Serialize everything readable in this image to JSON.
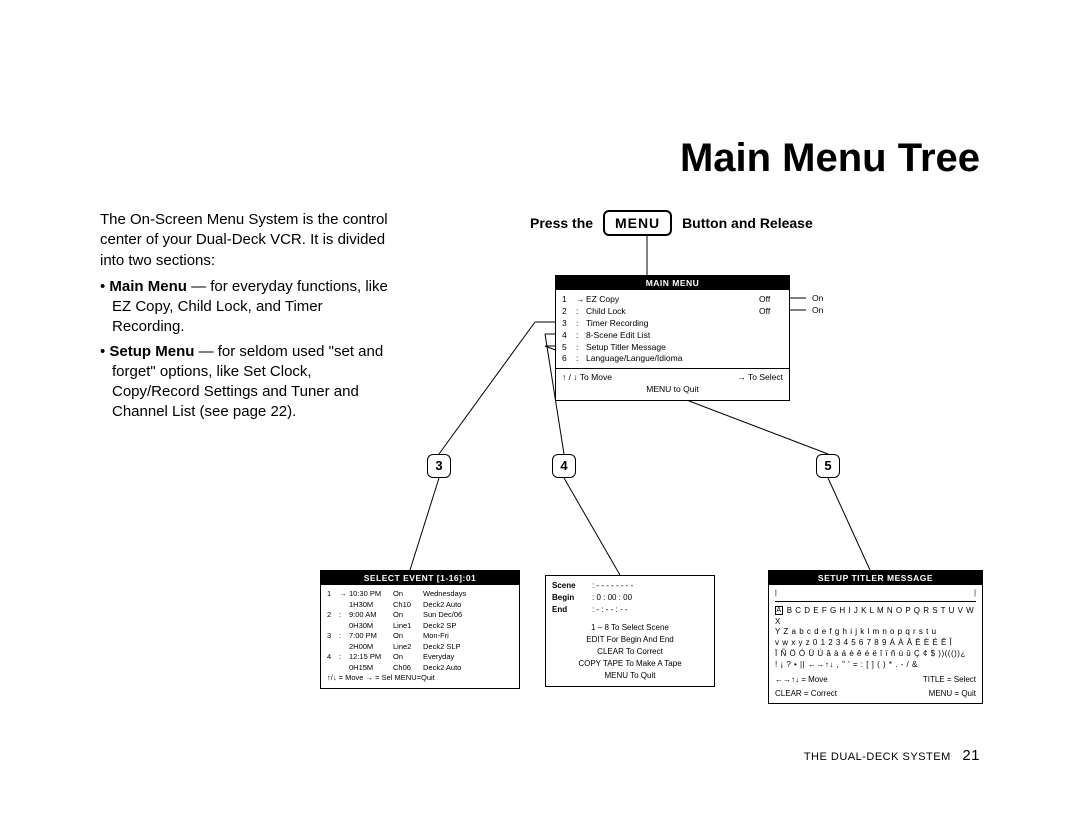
{
  "page_title": "Main Menu Tree",
  "intro": {
    "p1": "The On-Screen Menu System is the control center of your Dual-Deck VCR. It is divided into two sections:",
    "li1_bold": "Main Menu",
    "li1_rest": " — for everyday functions, like EZ Copy, Child Lock, and Timer Recording.",
    "li2_bold": "Setup Menu",
    "li2_rest": " — for seldom used \"set and forget\" options, like Set Clock, Copy/Record Settings and Tuner and Channel List (see page 22)."
  },
  "press": {
    "before": "Press the",
    "button": "MENU",
    "after": "Button and Release"
  },
  "main_menu": {
    "title": "MAIN MENU",
    "items": [
      {
        "n": "1",
        "arrow": "→",
        "label": "EZ Copy",
        "val": "Off"
      },
      {
        "n": "2",
        "arrow": ":",
        "label": "Child Lock",
        "val": "Off"
      },
      {
        "n": "3",
        "arrow": ":",
        "label": "Timer Recording",
        "val": ""
      },
      {
        "n": "4",
        "arrow": ":",
        "label": "8-Scene Edit List",
        "val": ""
      },
      {
        "n": "5",
        "arrow": ":",
        "label": "Setup Titler Message",
        "val": ""
      },
      {
        "n": "6",
        "arrow": ":",
        "label": "Language/Langue/Idioma",
        "val": ""
      }
    ],
    "footer_left": "↑  /  ↓    To Move",
    "footer_right": "→   To Select",
    "footer_center": "MENU to Quit",
    "on": "On"
  },
  "badges": {
    "b3": "3",
    "b4": "4",
    "b5": "5"
  },
  "select_event": {
    "title": "SELECT EVENT [1-16]:01",
    "rows": [
      {
        "c1": "1",
        "ca": "→",
        "c2": "10:30 PM",
        "c3": "On",
        "c4": "Wednesdays"
      },
      {
        "c1": "",
        "ca": "",
        "c2": "1H30M",
        "c3": "Ch10",
        "c4": "Deck2 Auto"
      },
      {
        "c1": "2",
        "ca": ":",
        "c2": "9:00 AM",
        "c3": "On",
        "c4": "Sun Dec/06"
      },
      {
        "c1": "",
        "ca": "",
        "c2": "0H30M",
        "c3": "Line1",
        "c4": "Deck2 SP"
      },
      {
        "c1": "3",
        "ca": ":",
        "c2": "7:00 PM",
        "c3": "On",
        "c4": "Mon-Fri"
      },
      {
        "c1": "",
        "ca": "",
        "c2": "2H00M",
        "c3": "Line2",
        "c4": "Deck2 SLP"
      },
      {
        "c1": "4",
        "ca": ":",
        "c2": "12:15 PM",
        "c3": "On",
        "c4": "Everyday"
      },
      {
        "c1": "",
        "ca": "",
        "c2": "0H15M",
        "c3": "Ch06",
        "c4": "Deck2 Auto"
      }
    ],
    "footer": "↑/↓ = Move      → = Sel      MENU=Quit"
  },
  "scene": {
    "l1_lab": "Scene",
    "l1_val": ":     - - - - - - - -",
    "l2_lab": "Begin",
    "l2_val": ":     0 : 00 : 00",
    "l3_lab": "End",
    "l3_val": ":     - : - - : - -",
    "l4": "1 – 8  To  Select  Scene",
    "l5": "EDIT  For  Begin  And  End",
    "l6": "CLEAR  To  Correct",
    "l7": "COPY TAPE  To  Make  A  Tape",
    "l8": "MENU  To  Quit"
  },
  "titler": {
    "title": "SETUP TITLER MESSAGE",
    "ruler_left": "|",
    "ruler_right": "|",
    "cursor_char": "A",
    "line1_rest": " B C D E F G H I J K L M N O P Q R S  T U V W X",
    "line2": "Y Z     a b c d e f g h i j k l m n o p q r s t u",
    "line3": "v w x y z    0 1 2 3 4 5 6 7 8 9    Á À Â Ë È É Ê Î",
    "line4": "Ï Ñ Ö Ó Ü Ú â à á è ê é ë î ï ñ ù û Ç ¢ $ ))((())¿",
    "line5": "! ¡ ? • || ←→↑↓ , \" ' =  : [ ] ( )  *  .  - / &",
    "foot_l1": "←→↑↓ = Move",
    "foot_r1": "TITLE = Select",
    "foot_l2": "CLEAR = Correct",
    "foot_r2": "MENU = Quit"
  },
  "footer": {
    "label": "THE DUAL-DECK SYSTEM",
    "page": "21"
  },
  "colors": {
    "line": "#000000"
  }
}
